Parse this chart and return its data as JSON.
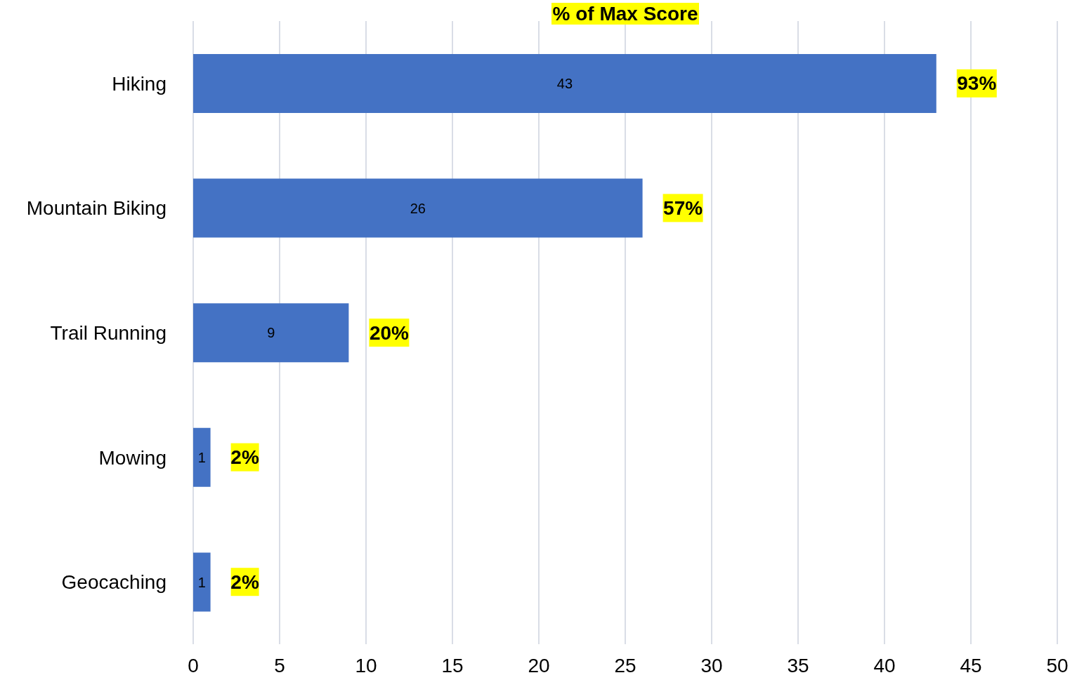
{
  "chart_data": {
    "type": "bar",
    "orientation": "horizontal",
    "title": "% of Max Score",
    "categories": [
      "Hiking",
      "Mountain Biking",
      "Trail Running",
      "Mowing",
      "Geocaching"
    ],
    "values": [
      43,
      26,
      9,
      1,
      1
    ],
    "color": "#4472c4",
    "xlim": [
      0,
      50
    ],
    "xticks": [
      0,
      5,
      10,
      15,
      20,
      25,
      30,
      35,
      40,
      45,
      50
    ],
    "grid": "x",
    "data_labels": true,
    "annotations": [
      {
        "text": "93%",
        "x": 43,
        "y": "Hiking"
      },
      {
        "text": "57%",
        "x": 26,
        "y": "Mountain Biking"
      },
      {
        "text": "20%",
        "x": 9,
        "y": "Trail Running"
      },
      {
        "text": "2%",
        "x": 1,
        "y": "Mowing"
      },
      {
        "text": "2%",
        "x": 1,
        "y": "Geocaching"
      }
    ]
  }
}
